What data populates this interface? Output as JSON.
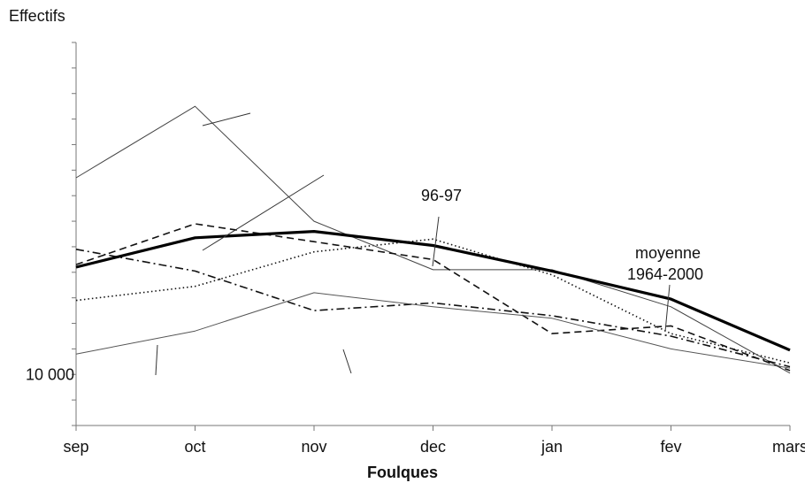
{
  "chart_data": {
    "type": "line",
    "ylabel": "Effectifs",
    "xlabel": "Foulques",
    "categories": [
      "sep",
      "oct",
      "nov",
      "dec",
      "jan",
      "fev",
      "mars"
    ],
    "ylim": [
      8000,
      23000
    ],
    "y_tick_values": [
      8000,
      9000,
      10000,
      11000,
      12000,
      13000,
      14000,
      15000,
      16000,
      17000,
      18000,
      19000,
      20000,
      21000,
      22000,
      23000
    ],
    "y_tick_labels": [
      {
        "value": 10000,
        "label": "10 000"
      }
    ],
    "grid": false,
    "legend": "none",
    "series": [
      {
        "name": "moyenne 1964-2000",
        "style": "thick-solid",
        "values": [
          14200,
          15350,
          15600,
          15050,
          14050,
          12950,
          10950
        ]
      },
      {
        "name": "96-97",
        "style": "dotted",
        "values": [
          12900,
          13450,
          14800,
          15300,
          13900,
          11600,
          10450
        ]
      },
      {
        "style": "thin-solid-a",
        "values": [
          17700,
          20500,
          16000,
          14100,
          14100,
          12650,
          10050
        ]
      },
      {
        "style": "dashed",
        "values": [
          14300,
          15900,
          15200,
          14500,
          11600,
          11900,
          10150
        ]
      },
      {
        "style": "dash-dot",
        "values": [
          14900,
          14050,
          12500,
          12800,
          12300,
          11500,
          10300
        ]
      },
      {
        "style": "thin-solid-b",
        "values": [
          10800,
          11700,
          13200,
          12650,
          12200,
          11000,
          10250
        ]
      }
    ],
    "annotations": [
      {
        "text": "96-97",
        "series": "96-97"
      },
      {
        "text": "moyenne",
        "series": "moyenne 1964-2000"
      },
      {
        "text": "1964-2000",
        "series": "moyenne 1964-2000"
      }
    ]
  }
}
